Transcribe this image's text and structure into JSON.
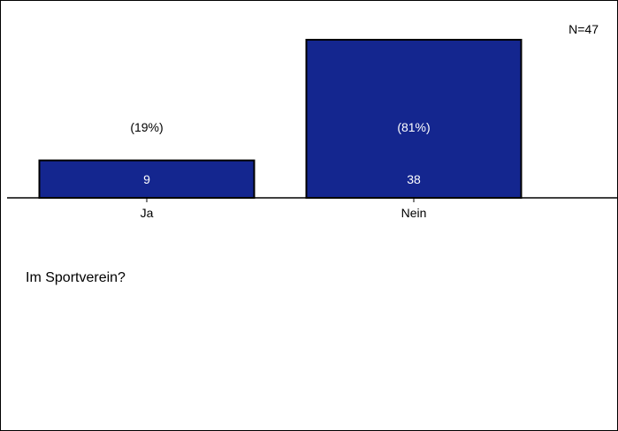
{
  "question": "Im Sportverein?",
  "sample_size_label": "N=47",
  "colors": {
    "bar_fill": "#14268f",
    "bar_border": "#000000",
    "value_text": "#ffffff",
    "label_text": "#000000"
  },
  "chart_data": {
    "type": "bar",
    "categories": [
      "Ja",
      "Nein"
    ],
    "values": [
      9,
      38
    ],
    "percent_labels": [
      "(19%)",
      "(81%)"
    ],
    "value_labels": [
      "9",
      "38"
    ],
    "title": "",
    "xlabel": "",
    "ylabel": "",
    "ylim": [
      0,
      38
    ],
    "grid": false,
    "legend": "none"
  }
}
